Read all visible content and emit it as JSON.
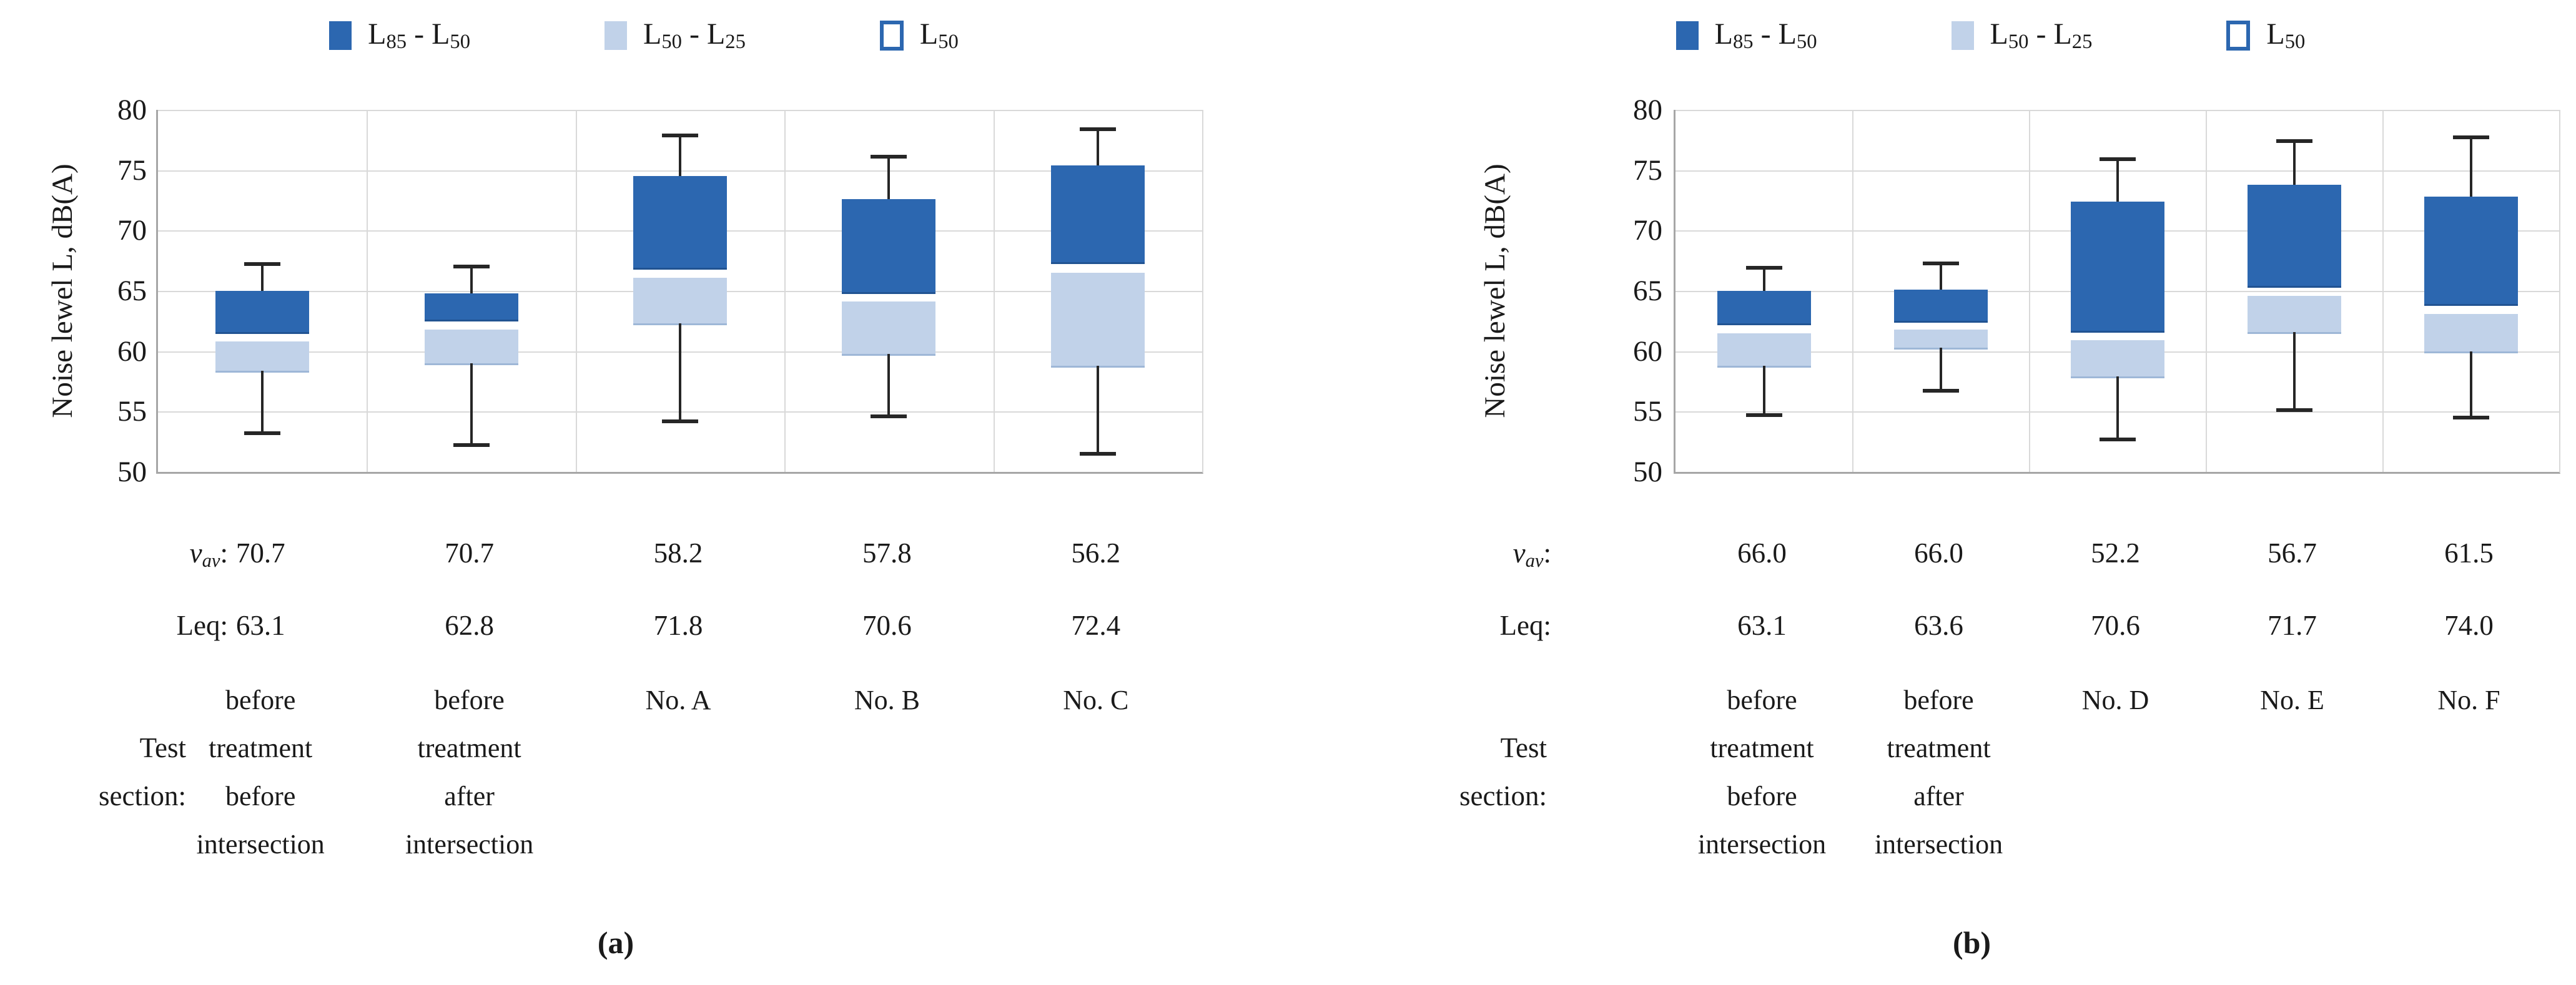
{
  "style": {
    "color_dark": "#2c67b0",
    "color_light": "#c1d2e9",
    "color_outline_border": "#2c67b0",
    "color_grid": "#d9d9d9",
    "color_axis": "#a6a6a6",
    "color_whisker": "#262626",
    "text_color": "#1a1a1a",
    "background": "#ffffff"
  },
  "chart_data": [
    {
      "id": "a",
      "type": "bar",
      "subtype": "stacked-box-whisker",
      "caption": "(a)",
      "ylabel": "Noise lewel L, dB(A)",
      "ylim": [
        50,
        80
      ],
      "yticks": [
        80,
        75,
        70,
        65,
        60,
        55,
        50
      ],
      "grid": true,
      "legend_position": "top",
      "legend": [
        {
          "swatch": "dark",
          "parts": [
            {
              "text": "L",
              "sub": "85"
            },
            {
              "text": " - L",
              "sub": "50"
            }
          ]
        },
        {
          "swatch": "light",
          "parts": [
            {
              "text": "L",
              "sub": "50"
            },
            {
              "text": " - L",
              "sub": "25"
            }
          ]
        },
        {
          "swatch": "outline",
          "parts": [
            {
              "text": "L",
              "sub": "50"
            }
          ]
        }
      ],
      "row_labels": {
        "vav_text": "v",
        "vav_sub": "av",
        "vav_colon": ":",
        "leq": "Leq:",
        "section_lines": [
          "Test",
          "section:"
        ]
      },
      "categories": [
        {
          "label_lines": [
            "before",
            "treatment",
            "before",
            "intersection"
          ],
          "v_av": "70.7",
          "leq": "63.1",
          "whisker_low": 53.2,
          "l25": 58.4,
          "l50_band": [
            60.8,
            61.6
          ],
          "l85": 65.0,
          "whisker_high": 67.2
        },
        {
          "label_lines": [
            "before",
            "treatment",
            "after",
            "intersection"
          ],
          "v_av": "70.7",
          "leq": "62.8",
          "whisker_low": 52.2,
          "l25": 59.0,
          "l50_band": [
            61.8,
            62.6
          ],
          "l85": 64.8,
          "whisker_high": 67.0
        },
        {
          "label_lines": [
            "No. A"
          ],
          "v_av": "58.2",
          "leq": "71.8",
          "whisker_low": 54.2,
          "l25": 62.3,
          "l50_band": [
            66.1,
            66.9
          ],
          "l85": 74.5,
          "whisker_high": 77.9
        },
        {
          "label_lines": [
            "No. B"
          ],
          "v_av": "57.8",
          "leq": "70.6",
          "whisker_low": 54.6,
          "l25": 59.8,
          "l50_band": [
            64.1,
            64.9
          ],
          "l85": 72.6,
          "whisker_high": 76.1
        },
        {
          "label_lines": [
            "No. C"
          ],
          "v_av": "56.2",
          "leq": "72.4",
          "whisker_low": 51.5,
          "l25": 58.8,
          "l50_band": [
            66.5,
            67.4
          ],
          "l85": 75.4,
          "whisker_high": 78.4
        }
      ]
    },
    {
      "id": "b",
      "type": "bar",
      "subtype": "stacked-box-whisker",
      "caption": "(b)",
      "ylabel": "Noise lewel L, dB(A)",
      "ylim": [
        50,
        80
      ],
      "yticks": [
        80,
        75,
        70,
        65,
        60,
        55,
        50
      ],
      "grid": true,
      "legend_position": "top",
      "legend": [
        {
          "swatch": "dark",
          "parts": [
            {
              "text": "L",
              "sub": "85"
            },
            {
              "text": " - L",
              "sub": "50"
            }
          ]
        },
        {
          "swatch": "light",
          "parts": [
            {
              "text": "L",
              "sub": "50"
            },
            {
              "text": " - L",
              "sub": "25"
            }
          ]
        },
        {
          "swatch": "outline",
          "parts": [
            {
              "text": "L",
              "sub": "50"
            }
          ]
        }
      ],
      "row_labels": {
        "vav_text": "v",
        "vav_sub": "av",
        "vav_colon": ":",
        "leq": "Leq:",
        "section_lines": [
          "Test",
          "section:"
        ]
      },
      "categories": [
        {
          "label_lines": [
            "before",
            "treatment",
            "before",
            "intersection"
          ],
          "v_av": "66.0",
          "leq": "63.1",
          "whisker_low": 54.7,
          "l25": 58.8,
          "l50_band": [
            61.5,
            62.3
          ],
          "l85": 65.0,
          "whisker_high": 66.9
        },
        {
          "label_lines": [
            "before",
            "treatment",
            "after",
            "intersection"
          ],
          "v_av": "66.0",
          "leq": "63.6",
          "whisker_low": 56.7,
          "l25": 60.3,
          "l50_band": [
            61.8,
            62.5
          ],
          "l85": 65.1,
          "whisker_high": 67.3
        },
        {
          "label_lines": [
            "No. D"
          ],
          "v_av": "52.2",
          "leq": "70.6",
          "whisker_low": 52.7,
          "l25": 57.9,
          "l50_band": [
            60.9,
            61.7
          ],
          "l85": 72.4,
          "whisker_high": 75.9
        },
        {
          "label_lines": [
            "No. E"
          ],
          "v_av": "56.7",
          "leq": "71.7",
          "whisker_low": 55.1,
          "l25": 61.6,
          "l50_band": [
            64.6,
            65.4
          ],
          "l85": 73.8,
          "whisker_high": 77.4
        },
        {
          "label_lines": [
            "No. F"
          ],
          "v_av": "61.5",
          "leq": "74.0",
          "whisker_low": 54.5,
          "l25": 60.0,
          "l50_band": [
            63.1,
            63.9
          ],
          "l85": 72.8,
          "whisker_high": 77.7
        }
      ]
    }
  ]
}
